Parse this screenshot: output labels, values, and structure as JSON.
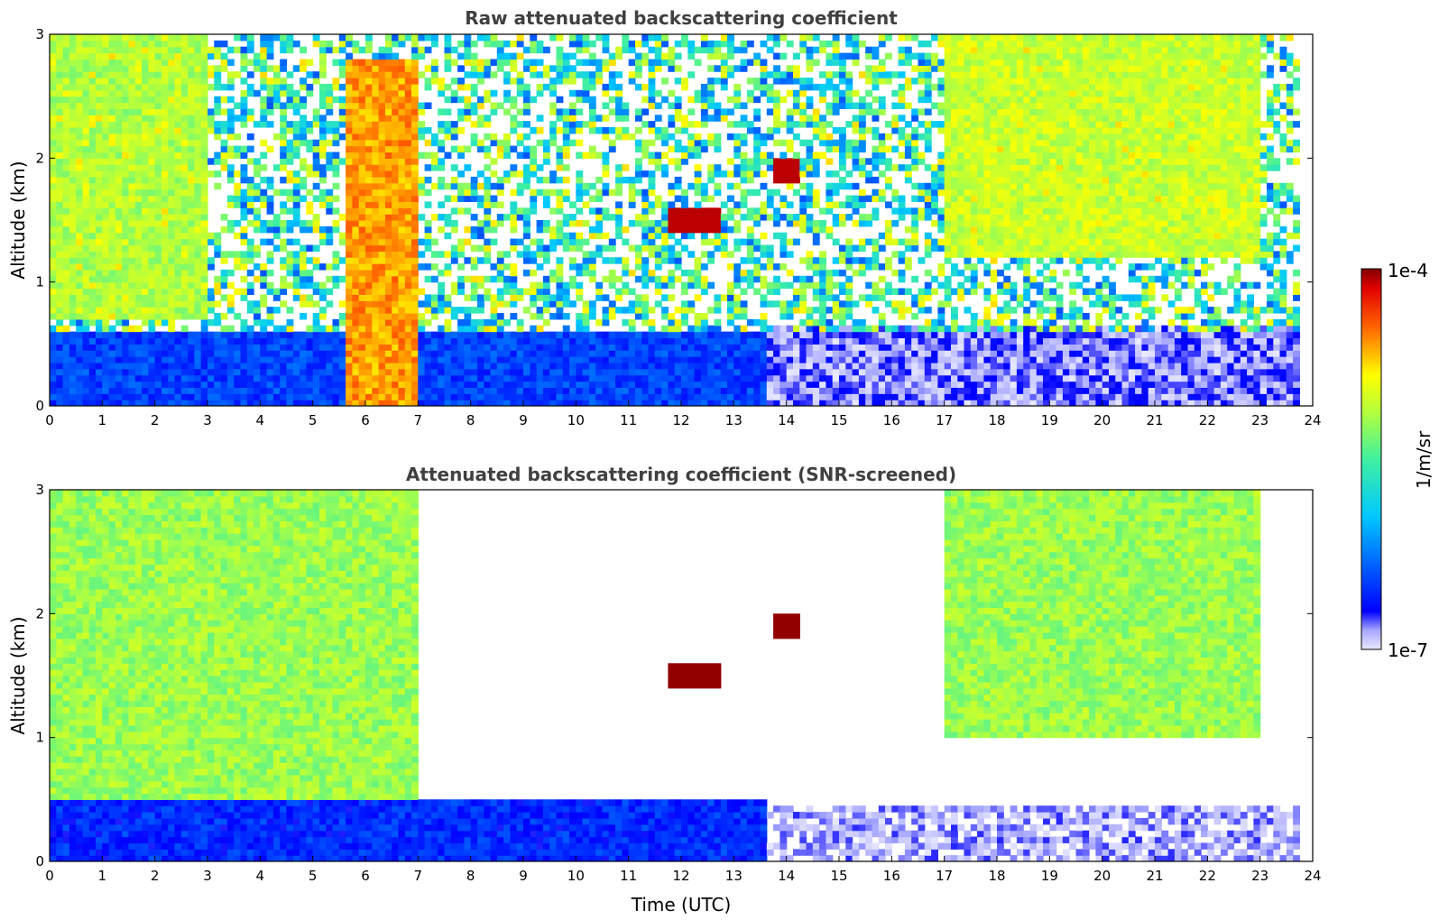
{
  "chart_data": [
    {
      "type": "heatmap",
      "title": "Raw attenuated backscattering coefficient",
      "xlabel": "",
      "ylabel": "Altitude (km)",
      "xlim": [
        0,
        24
      ],
      "ylim": [
        0,
        3
      ],
      "xticks": [
        "0",
        "1",
        "2",
        "3",
        "4",
        "5",
        "6",
        "7",
        "8",
        "9",
        "10",
        "11",
        "12",
        "13",
        "14",
        "15",
        "16",
        "17",
        "18",
        "19",
        "20",
        "21",
        "22",
        "23",
        "24"
      ],
      "yticks": [
        "0",
        "1",
        "2",
        "3"
      ],
      "data_end_time": 23.75,
      "features": [
        {
          "name": "boundary-layer aerosol (raw)",
          "t": [
            0,
            13.6
          ],
          "alt": [
            0,
            0.6
          ],
          "level": 0.18
        },
        {
          "name": "clear-air background (raw)",
          "t": [
            13.6,
            23.75
          ],
          "alt": [
            0,
            0.65
          ],
          "level": 0.06
        },
        {
          "name": "noise field",
          "t": [
            0,
            23.75
          ],
          "alt": [
            0.6,
            3.0
          ],
          "level": 0.45
        },
        {
          "name": "elevated layer 1",
          "t": [
            11.8,
            12.7
          ],
          "alt": [
            1.4,
            1.6
          ],
          "level": 0.97
        },
        {
          "name": "elevated layer 2",
          "t": [
            13.8,
            14.3
          ],
          "alt": [
            1.8,
            2.0
          ],
          "level": 0.97
        },
        {
          "name": "fall streaks early",
          "t": [
            0,
            3.0
          ],
          "alt": [
            0.7,
            3.0
          ],
          "level": 0.62
        },
        {
          "name": "fall streak 6UTC",
          "t": [
            5.6,
            7.0
          ],
          "alt": [
            0,
            2.8
          ],
          "level": 0.8
        },
        {
          "name": "afternoon plume",
          "t": [
            17.0,
            23.0
          ],
          "alt": [
            1.2,
            3.0
          ],
          "level": 0.65
        }
      ]
    },
    {
      "type": "heatmap",
      "title": "Attenuated backscattering coefficient (SNR-screened)",
      "xlabel": "Time (UTC)",
      "ylabel": "Altitude (km)",
      "xlim": [
        0,
        24
      ],
      "ylim": [
        0,
        3
      ],
      "xticks": [
        "0",
        "1",
        "2",
        "3",
        "4",
        "5",
        "6",
        "7",
        "8",
        "9",
        "10",
        "11",
        "12",
        "13",
        "14",
        "15",
        "16",
        "17",
        "18",
        "19",
        "20",
        "21",
        "22",
        "23",
        "24"
      ],
      "yticks": [
        "0",
        "1",
        "2",
        "3"
      ],
      "data_end_time": 23.75,
      "features": [
        {
          "name": "boundary-layer aerosol",
          "t": [
            0,
            13.6
          ],
          "alt": [
            0,
            0.5
          ],
          "level": 0.15
        },
        {
          "name": "clear-air background",
          "t": [
            13.6,
            23.75
          ],
          "alt": [
            0,
            0.45
          ],
          "level": 0.03
        },
        {
          "name": "elevated layer 1",
          "t": [
            11.8,
            12.7
          ],
          "alt": [
            1.4,
            1.6
          ],
          "level": 0.99
        },
        {
          "name": "elevated layer 2",
          "t": [
            13.8,
            14.3
          ],
          "alt": [
            1.8,
            2.0
          ],
          "level": 0.99
        },
        {
          "name": "cloud/rain morning",
          "t": [
            0,
            7.0
          ],
          "alt": [
            0.5,
            3.0
          ],
          "level": 0.6
        },
        {
          "name": "afternoon cloud mass",
          "t": [
            17.0,
            23.0
          ],
          "alt": [
            1.0,
            3.0
          ],
          "level": 0.6
        }
      ]
    }
  ],
  "colorbar": {
    "label": "1/m/sr",
    "min_label": "1e-7",
    "max_label": "1e-4",
    "colormap": "jet",
    "low_colors": [
      "#e8e8ff",
      "#c8c8ff",
      "#a0a0ff",
      "#7070ff"
    ]
  }
}
